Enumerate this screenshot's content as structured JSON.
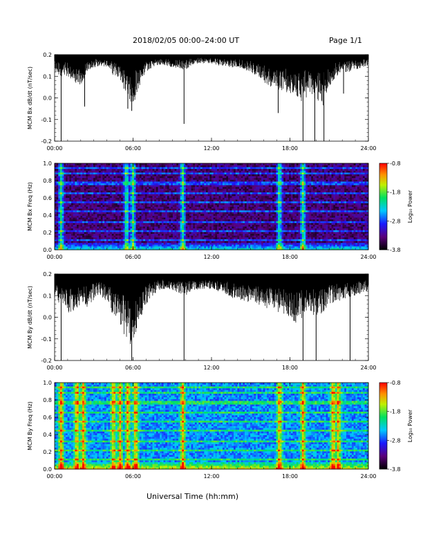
{
  "header": {
    "title": "2018/02/05  00:00–24:00 UT",
    "page": "Page 1/1"
  },
  "footer": {
    "xlabel": "Universal Time (hh:mm)"
  },
  "chart_data": [
    {
      "type": "line",
      "ylabel": "MCM Bx dB/dt (nT/sec)",
      "xlim": [
        0,
        24
      ],
      "ylim": [
        -0.2,
        0.2
      ],
      "x_ticks": [
        "00:00",
        "06:00",
        "12:00",
        "18:00",
        "24:00"
      ],
      "y_ticks": [
        "-0.2",
        "-0.1",
        "0.0",
        "0.1",
        "0.2"
      ],
      "envelope_hours": [
        0,
        0.5,
        1,
        1.5,
        2,
        2.5,
        3,
        3.5,
        4,
        4.5,
        5,
        5.5,
        6,
        6.5,
        7,
        7.5,
        8,
        8.5,
        9,
        9.5,
        10,
        10.5,
        11,
        11.5,
        12,
        12.5,
        13,
        13.5,
        14,
        14.5,
        15,
        15.5,
        16,
        16.5,
        17,
        17.5,
        18,
        18.5,
        19,
        19.5,
        20,
        20.5,
        21,
        21.5,
        22,
        22.5,
        23,
        23.5,
        24
      ],
      "envelope_min": [
        0.12,
        0.1,
        0.1,
        0.07,
        0.05,
        0.12,
        0.14,
        0.15,
        0.14,
        0.1,
        0.07,
        0.02,
        -0.04,
        0.05,
        0.12,
        0.14,
        0.15,
        0.15,
        0.14,
        0.13,
        0.13,
        0.15,
        0.16,
        0.16,
        0.16,
        0.15,
        0.15,
        0.14,
        0.14,
        0.13,
        0.12,
        0.1,
        0.07,
        0.05,
        0.03,
        0.03,
        0.02,
        0.0,
        -0.02,
        0.02,
        -0.01,
        -0.04,
        0.05,
        0.1,
        0.11,
        0.12,
        0.13,
        0.14,
        0.15
      ],
      "spikes": [
        {
          "x": 0.5,
          "y": -0.2
        },
        {
          "x": 2.3,
          "y": -0.04
        },
        {
          "x": 5.6,
          "y": -0.05
        },
        {
          "x": 5.9,
          "y": -0.06
        },
        {
          "x": 9.9,
          "y": -0.12
        },
        {
          "x": 17.1,
          "y": -0.07
        },
        {
          "x": 19.0,
          "y": -0.2
        },
        {
          "x": 19.9,
          "y": -0.2
        },
        {
          "x": 20.6,
          "y": -0.2
        },
        {
          "x": 22.1,
          "y": 0.02
        }
      ]
    },
    {
      "type": "heatmap",
      "ylabel": "MCM Bx Freq (Hz)",
      "colorbar_label": "Log₁₀ Power",
      "colorbar_ticks": [
        "-0.8",
        "-1.8",
        "-2.8",
        "-3.8"
      ],
      "colorbar_range": [
        -3.8,
        -0.8
      ],
      "xlim": [
        0,
        24
      ],
      "ylim": [
        0,
        1.0
      ],
      "x_ticks": [
        "00:00",
        "06:00",
        "12:00",
        "18:00",
        "24:00"
      ],
      "y_ticks": [
        "0.0",
        "0.2",
        "0.4",
        "0.6",
        "0.8",
        "1.0"
      ],
      "background_log_power": -3.4,
      "bright_columns_hours": [
        0.5,
        5.5,
        6.0,
        9.8,
        17.2,
        19.0
      ],
      "harmonic_bands_hz": [
        0.11,
        0.22,
        0.33,
        0.44,
        0.55,
        0.66,
        0.77,
        0.88,
        0.95
      ]
    },
    {
      "type": "line",
      "ylabel": "MCM By dB/dt (nT/sec)",
      "xlim": [
        0,
        24
      ],
      "ylim": [
        -0.2,
        0.2
      ],
      "x_ticks": [
        "00:00",
        "06:00",
        "12:00",
        "18:00",
        "24:00"
      ],
      "y_ticks": [
        "-0.2",
        "-0.1",
        "0.0",
        "0.1",
        "0.2"
      ],
      "envelope_hours": [
        0,
        0.5,
        1,
        1.5,
        2,
        2.5,
        3,
        3.5,
        4,
        4.5,
        5,
        5.5,
        6,
        6.5,
        7,
        7.5,
        8,
        8.5,
        9,
        9.5,
        10,
        10.5,
        11,
        11.5,
        12,
        12.5,
        13,
        13.5,
        14,
        14.5,
        15,
        15.5,
        16,
        16.5,
        17,
        17.5,
        18,
        18.5,
        19,
        19.5,
        20,
        20.5,
        21,
        21.5,
        22,
        22.5,
        23,
        23.5,
        24
      ],
      "envelope_min": [
        0.08,
        0.06,
        0.02,
        0.03,
        0.06,
        0.04,
        0.08,
        0.1,
        0.06,
        0.0,
        -0.05,
        -0.1,
        -0.15,
        -0.02,
        0.06,
        0.1,
        0.12,
        0.13,
        0.12,
        0.11,
        0.1,
        0.12,
        0.13,
        0.13,
        0.13,
        0.12,
        0.11,
        0.09,
        0.08,
        0.07,
        0.07,
        0.06,
        0.05,
        0.03,
        0.02,
        0.01,
        0.0,
        -0.03,
        0.0,
        0.02,
        0.0,
        0.02,
        0.05,
        0.07,
        0.08,
        0.09,
        0.1,
        0.11,
        0.12
      ],
      "spikes": [
        {
          "x": 0.5,
          "y": -0.2
        },
        {
          "x": 5.9,
          "y": -0.2
        },
        {
          "x": 9.9,
          "y": -0.2
        },
        {
          "x": 19.0,
          "y": -0.2
        },
        {
          "x": 20.0,
          "y": -0.2
        },
        {
          "x": 22.6,
          "y": -0.2
        }
      ]
    },
    {
      "type": "heatmap",
      "ylabel": "MCM By Freq (Hz)",
      "colorbar_label": "Log₁₀ Power",
      "colorbar_ticks": [
        "-0.8",
        "-1.8",
        "-2.8",
        "-3.8"
      ],
      "colorbar_range": [
        -3.8,
        -0.8
      ],
      "xlim": [
        0,
        24
      ],
      "ylim": [
        0,
        1.0
      ],
      "x_ticks": [
        "00:00",
        "06:00",
        "12:00",
        "18:00",
        "24:00"
      ],
      "y_ticks": [
        "0.0",
        "0.2",
        "0.4",
        "0.6",
        "0.8",
        "1.0"
      ],
      "background_log_power": -2.6,
      "bright_columns_hours": [
        0.5,
        1.7,
        2.2,
        4.5,
        5.0,
        5.6,
        6.2,
        9.8,
        17.2,
        19.0,
        21.3,
        21.7
      ],
      "harmonic_bands_hz": [
        0.11,
        0.22,
        0.33,
        0.44,
        0.55,
        0.66,
        0.77,
        0.88,
        0.95
      ]
    }
  ]
}
